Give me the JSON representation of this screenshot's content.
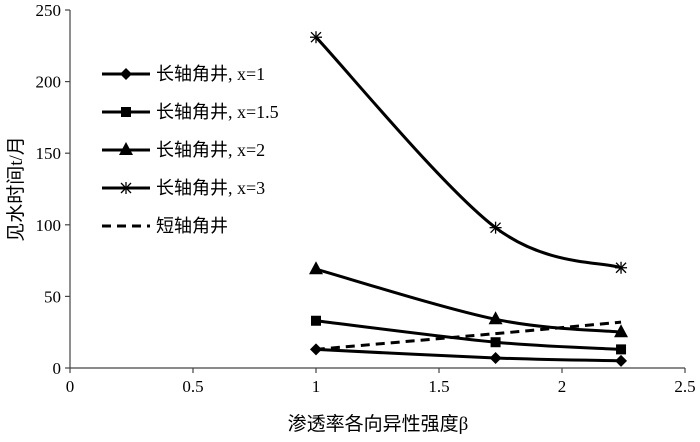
{
  "chart_data": {
    "type": "line",
    "title": "",
    "xlabel": "渗透率各向异性强度β",
    "ylabel": "见水时间t/月",
    "xlim": [
      0,
      2.5
    ],
    "ylim": [
      0,
      250
    ],
    "x_ticks": [
      "0",
      "0.5",
      "1",
      "1.5",
      "2",
      "2.5"
    ],
    "y_ticks": [
      "0",
      "50",
      "100",
      "150",
      "200",
      "250"
    ],
    "grid": false,
    "legend_position": "top-left",
    "series": [
      {
        "name": "长轴角井, x=1",
        "marker": "diamond",
        "dash": "solid",
        "x": [
          1,
          1.73,
          2.24
        ],
        "y": [
          13,
          7,
          5
        ]
      },
      {
        "name": "长轴角井, x=1.5",
        "marker": "square",
        "dash": "solid",
        "x": [
          1,
          1.73,
          2.24
        ],
        "y": [
          33,
          18,
          13
        ]
      },
      {
        "name": "长轴角井, x=2",
        "marker": "triangle",
        "dash": "solid",
        "x": [
          1,
          1.73,
          2.24
        ],
        "y": [
          69,
          34,
          25
        ]
      },
      {
        "name": "长轴角井, x=3",
        "marker": "asterisk",
        "dash": "solid",
        "x": [
          1,
          1.73,
          2.24
        ],
        "y": [
          231,
          98,
          70
        ]
      },
      {
        "name": "短轴角井",
        "marker": "none",
        "dash": "dashed",
        "x": [
          1,
          1.73,
          2.24
        ],
        "y": [
          13,
          24,
          32
        ]
      }
    ],
    "colors": {
      "line": "#000000",
      "axis": "#444444"
    }
  }
}
